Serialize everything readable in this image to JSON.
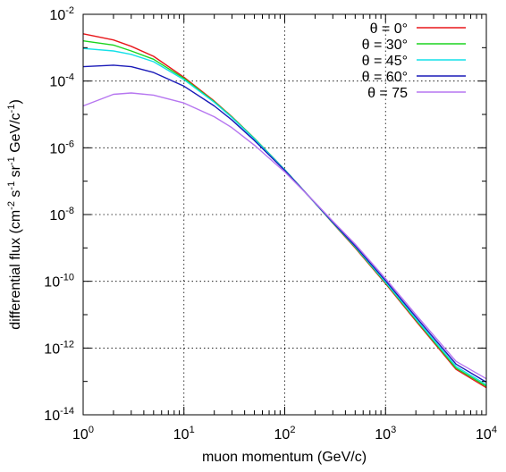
{
  "chart_data": {
    "type": "line",
    "xlabel": "muon momentum (GeV/c)",
    "ylabel": "differential flux (cm-2 s-1 sr-1 GeV/c-1)",
    "x_scale": "log",
    "y_scale": "log",
    "xlim": [
      1,
      10000
    ],
    "ylim": [
      1e-14,
      0.01
    ],
    "grid": true,
    "legend_position": "top-right",
    "x_ticks": [
      {
        "mant": "10",
        "exp": "0"
      },
      {
        "mant": "10",
        "exp": "1"
      },
      {
        "mant": "10",
        "exp": "2"
      },
      {
        "mant": "10",
        "exp": "3"
      },
      {
        "mant": "10",
        "exp": "4"
      }
    ],
    "y_ticks": [
      {
        "mant": "10",
        "exp": "-14"
      },
      {
        "mant": "10",
        "exp": "-12"
      },
      {
        "mant": "10",
        "exp": "-10"
      },
      {
        "mant": "10",
        "exp": "-8"
      },
      {
        "mant": "10",
        "exp": "-6"
      },
      {
        "mant": "10",
        "exp": "-4"
      },
      {
        "mant": "10",
        "exp": "-2"
      }
    ],
    "series": [
      {
        "name": "θ = 0°",
        "color": "#e8161a",
        "x": [
          1,
          2,
          3,
          5,
          10,
          20,
          30,
          50,
          100,
          200,
          300,
          500,
          1000,
          2000,
          5000,
          10000
        ],
        "y": [
          0.0026,
          0.0017,
          0.0011,
          0.00055,
          0.00013,
          2.5e-05,
          8.5e-06,
          1.9e-06,
          2.2e-07,
          2.2e-08,
          5.5e-09,
          1e-09,
          8.5e-11,
          6.5e-12,
          2.3e-13,
          6.5e-14
        ]
      },
      {
        "name": "θ = 30°",
        "color": "#1bd41e",
        "x": [
          1,
          2,
          3,
          5,
          10,
          20,
          30,
          50,
          100,
          200,
          300,
          500,
          1000,
          2000,
          5000,
          10000
        ],
        "y": [
          0.0016,
          0.0012,
          0.0008,
          0.00045,
          0.00012,
          2.4e-05,
          8.3e-06,
          1.9e-06,
          2.2e-07,
          2.2e-08,
          5.6e-09,
          1.05e-09,
          9e-11,
          7e-12,
          2.5e-13,
          7.2e-14
        ]
      },
      {
        "name": "θ = 45°",
        "color": "#14e0e8",
        "x": [
          1,
          2,
          3,
          5,
          10,
          20,
          30,
          50,
          100,
          200,
          300,
          500,
          1000,
          2000,
          5000,
          10000
        ],
        "y": [
          0.00095,
          0.0008,
          0.00063,
          0.00038,
          0.00011,
          2.3e-05,
          8e-06,
          1.85e-06,
          2.2e-07,
          2.2e-08,
          5.7e-09,
          1.1e-09,
          9.5e-11,
          7.5e-12,
          2.8e-13,
          8e-14
        ]
      },
      {
        "name": "θ = 60°",
        "color": "#1a1ab8",
        "x": [
          1,
          2,
          3,
          5,
          10,
          20,
          30,
          50,
          100,
          200,
          300,
          500,
          1000,
          2000,
          5000,
          10000
        ],
        "y": [
          0.00027,
          0.0003,
          0.00027,
          0.00018,
          7e-05,
          1.8e-05,
          6.8e-06,
          1.65e-06,
          2.1e-07,
          2.25e-08,
          5.9e-09,
          1.15e-09,
          1.05e-10,
          8.5e-12,
          3.3e-13,
          9.5e-14
        ]
      },
      {
        "name": "θ = 75",
        "color": "#b676f0",
        "x": [
          1,
          2,
          3,
          5,
          10,
          20,
          30,
          50,
          100,
          200,
          300,
          500,
          1000,
          2000,
          5000,
          10000
        ],
        "y": [
          1.8e-05,
          4e-05,
          4.4e-05,
          3.8e-05,
          2.2e-05,
          8.5e-06,
          4e-06,
          1.2e-06,
          1.9e-07,
          2.3e-08,
          6.3e-09,
          1.3e-09,
          1.2e-10,
          1e-11,
          4e-13,
          1.2e-13
        ]
      }
    ]
  }
}
